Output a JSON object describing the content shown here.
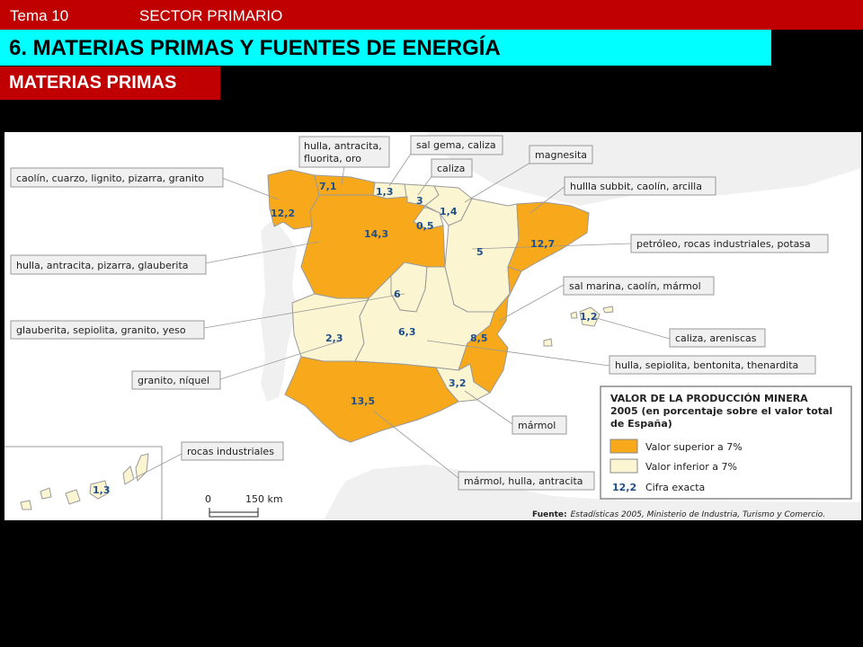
{
  "header": {
    "tema": "Tema 10",
    "sector": "SECTOR PRIMARIO"
  },
  "title": "6. MATERIAS PRIMAS Y FUENTES DE ENERGÍA",
  "subtitle": "MATERIAS PRIMAS",
  "colors": {
    "above": "#f7a91b",
    "below": "#fbf5d2",
    "border": "#9a9a9a",
    "value": "#1f4f8a",
    "header_red": "#c00000",
    "title_cyan": "#00ffff"
  },
  "map": {
    "regions": [
      {
        "name": "galicia",
        "value": "12,2",
        "category": "above",
        "resources": "caolín, cuarzo, lignito, pizarra, granito"
      },
      {
        "name": "asturias",
        "value": "7,1",
        "category": "above",
        "resources": "hulla, antracita, fluorita, oro"
      },
      {
        "name": "cantabria",
        "value": "1,3",
        "category": "below",
        "resources": "sal gema, caliza"
      },
      {
        "name": "pais-vasco",
        "value": "3",
        "category": "below",
        "resources": "caliza"
      },
      {
        "name": "navarra",
        "value": "1,4",
        "category": "below",
        "resources": "magnesita"
      },
      {
        "name": "la-rioja",
        "value": "0,5",
        "category": "below",
        "resources": ""
      },
      {
        "name": "aragon",
        "value": "5",
        "category": "below",
        "resources": ""
      },
      {
        "name": "cataluna",
        "value": "12,7",
        "category": "above",
        "resources": "hullla subbit, caolín, arcilla"
      },
      {
        "name": "castilla-leon",
        "value": "14,3",
        "category": "above",
        "resources": "hulla, antracita, pizarra, glauberita"
      },
      {
        "name": "madrid",
        "value": "6",
        "category": "below",
        "resources": "glauberita, sepiolita, granito, yeso"
      },
      {
        "name": "extremadura",
        "value": "2,3",
        "category": "below",
        "resources": "granito, níquel"
      },
      {
        "name": "castilla-la-mancha",
        "value": "6,3",
        "category": "below",
        "resources": "hulla, sepiolita, bentonita, thenardita"
      },
      {
        "name": "comunidad-valenciana",
        "value": "8,5",
        "category": "above",
        "resources": "sal marina, caolín, mármol"
      },
      {
        "name": "baleares",
        "value": "1,2",
        "category": "below",
        "resources": "caliza, areniscas"
      },
      {
        "name": "murcia",
        "value": "3,2",
        "category": "below",
        "resources": "mármol"
      },
      {
        "name": "andalucia",
        "value": "13,5",
        "category": "above",
        "resources": "mármol, hulla, antracita"
      },
      {
        "name": "canarias",
        "value": "1,3",
        "category": "below",
        "resources": "rocas industriales"
      }
    ],
    "extra_callouts": [
      "petróleo, rocas industriales, potasa"
    ],
    "scale": {
      "zero": "0",
      "max": "150 km"
    },
    "legend": {
      "title_lines": [
        "VALOR DE LA PRODUCCIÓN MINERA",
        "2005 (en porcentaje sobre el valor total",
        "de España)"
      ],
      "above_label": "Valor superior a 7%",
      "below_label": "Valor inferior a 7%",
      "exact_sample": "12,2",
      "exact_label": "Cifra exacta"
    },
    "source_prefix": "Fuente:",
    "source_text": "Estadísticas 2005, Ministerio de Industria, Turismo y Comercio."
  }
}
